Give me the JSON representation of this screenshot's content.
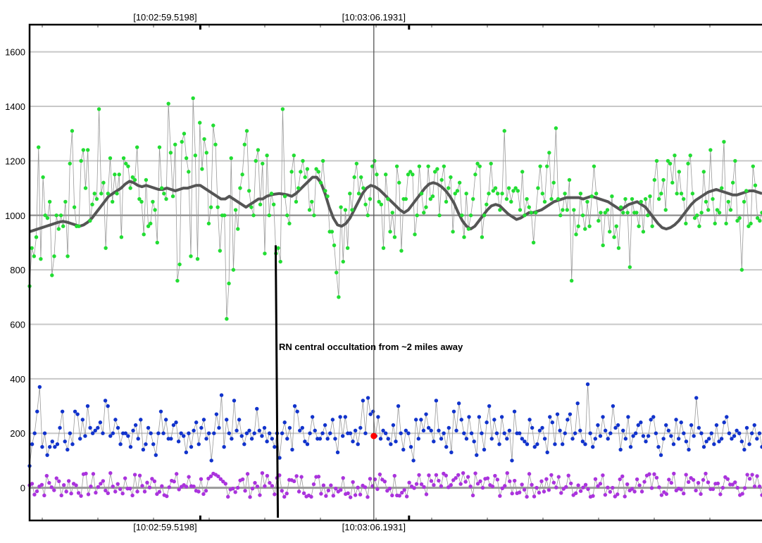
{
  "chart_data": {
    "type": "scatter",
    "ylim": [
      -120,
      1700
    ],
    "xlim": [
      0,
      1
    ],
    "grid": true,
    "y_ticks": [
      0,
      200,
      400,
      600,
      800,
      1000,
      1200,
      1400,
      1600
    ],
    "time_labels": [
      {
        "text": "[10:02:59.5198]",
        "x": 0.185
      },
      {
        "text": "[10:03:06.1931]",
        "x": 0.47
      }
    ],
    "cursor_x": 0.47,
    "annotation": "RN central occultation from ~2 miles away",
    "event_line": {
      "from": [
        0.336,
        890
      ],
      "to": [
        0.339,
        -110
      ]
    },
    "highlight_point": {
      "x": 0.47,
      "y": 190
    },
    "colors": {
      "target": "#22dd33",
      "smoothed": "#555555",
      "comparison": "#1133cc",
      "background": "#aa33dd",
      "highlight": "#ff0000",
      "connector": "#999999",
      "grid": "#c8c8c8"
    },
    "series": [
      {
        "color": "#22dd33",
        "values": [
          740,
          880,
          850,
          920,
          1250,
          840,
          1140,
          1000,
          990,
          1050,
          780,
          850,
          1000,
          950,
          1000,
          960,
          1050,
          850,
          1190,
          1310,
          1030,
          960,
          960,
          1200,
          1240,
          1100,
          1240,
          980,
          1040,
          1080,
          1060,
          1390,
          1080,
          1120,
          880,
          1080,
          1210,
          1050,
          1150,
          1080,
          1150,
          920,
          1210,
          1190,
          1180,
          1100,
          1140,
          1130,
          1250,
          1060,
          1050,
          930,
          1130,
          960,
          970,
          1050,
          1020,
          900,
          1250,
          1100,
          1080,
          1060,
          1410,
          1230,
          1070,
          1260,
          760,
          820,
          1270,
          1300,
          1210,
          1160,
          850,
          1430,
          1220,
          840,
          1340,
          1170,
          1280,
          1230,
          970,
          1030,
          1330,
          1260,
          1030,
          870,
          1000,
          1000,
          620,
          750,
          1210,
          800,
          1020,
          950,
          1100,
          1150,
          1260,
          1310,
          1090,
          1030,
          1000,
          1200,
          1240,
          1040,
          1190,
          860,
          1220,
          1000,
          1080,
          1040,
          860,
          880,
          830,
          1390,
          1070,
          1000,
          970,
          1160,
          1220,
          1050,
          1100,
          1160,
          1200,
          1140,
          1170,
          1020,
          1050,
          1000,
          1170,
          1160,
          1120,
          1200,
          1090,
          1070,
          940,
          940,
          890,
          790,
          700,
          1030,
          830,
          1020,
          880,
          1080,
          1020,
          1140,
          1190,
          1080,
          1140,
          1100,
          1040,
          1000,
          1060,
          1180,
          1200,
          1150,
          1050,
          1040,
          880,
          1150,
          1060,
          940,
          1010,
          920,
          1180,
          1120,
          870,
          1060,
          1060,
          1150,
          1160,
          1150,
          930,
          1000,
          1180,
          1080,
          1010,
          1030,
          1180,
          1060,
          1070,
          1160,
          1170,
          1000,
          1130,
          1180,
          1050,
          1100,
          1140,
          940,
          1080,
          1090,
          1120,
          1000,
          920,
          1080,
          950,
          1000,
          1060,
          1150,
          1190,
          1180,
          920,
          1000,
          1040,
          1080,
          1190,
          1090,
          1100,
          1080,
          1020,
          1080,
          1310,
          1060,
          1100,
          1050,
          1090,
          1100,
          1090,
          1020,
          1160,
          1000,
          1060,
          1030,
          1010,
          900,
          1010,
          1100,
          1180,
          1080,
          1050,
          1180,
          1230,
          1060,
          1120,
          1320,
          1060,
          1000,
          1020,
          1080,
          1020,
          1130,
          760,
          1020,
          930,
          960,
          1080,
          1000,
          950,
          1050,
          960,
          1070,
          1180,
          1080,
          980,
          1010,
          890,
          1010,
          1020,
          940,
          1070,
          920,
          960,
          880,
          1030,
          1010,
          1060,
          1010,
          810,
          1060,
          1010,
          1010,
          960,
          1050,
          940,
          1060,
          1000,
          1070,
          960,
          1130,
          1200,
          1060,
          1080,
          1130,
          1020,
          1200,
          1190,
          1120,
          1220,
          1080,
          1160,
          1080,
          1060,
          970,
          1190,
          1220,
          1080,
          990,
          1000,
          960,
          1010,
          1160,
          1050,
          1020,
          1240,
          1060,
          970,
          1020,
          1010,
          1100,
          1270,
          970,
          1050,
          1020,
          1120,
          1200,
          980,
          990,
          800,
          1050,
          1090,
          960,
          970,
          1180,
          1110,
          990,
          980,
          1010
        ]
      },
      {
        "color": "#555555",
        "values": [
          940,
          945,
          950,
          955,
          960,
          965,
          970,
          975,
          978,
          975,
          970,
          965,
          960,
          965,
          975,
          990,
          1010,
          1030,
          1050,
          1070,
          1080,
          1090,
          1100,
          1115,
          1125,
          1120,
          1110,
          1105,
          1110,
          1105,
          1100,
          1095,
          1095,
          1100,
          1095,
          1090,
          1095,
          1100,
          1100,
          1105,
          1110,
          1110,
          1100,
          1090,
          1080,
          1070,
          1060,
          1060,
          1070,
          1060,
          1050,
          1040,
          1030,
          1040,
          1050,
          1060,
          1060,
          1070,
          1075,
          1078,
          1080,
          1078,
          1075,
          1070,
          1080,
          1095,
          1110,
          1125,
          1140,
          1140,
          1120,
          1080,
          1030,
          990,
          965,
          960,
          970,
          990,
          1020,
          1050,
          1080,
          1100,
          1110,
          1105,
          1095,
          1080,
          1065,
          1050,
          1035,
          1020,
          1010,
          1020,
          1040,
          1060,
          1080,
          1100,
          1115,
          1120,
          1115,
          1105,
          1090,
          1070,
          1045,
          1010,
          980,
          960,
          950,
          960,
          980,
          1000,
          1020,
          1035,
          1040,
          1035,
          1020,
          1005,
          995,
          985,
          990,
          1000,
          1010,
          1010,
          1015,
          1020,
          1030,
          1040,
          1050,
          1055,
          1060,
          1065,
          1065,
          1065,
          1065,
          1060,
          1065,
          1070,
          1065,
          1060,
          1055,
          1050,
          1040,
          1030,
          1020,
          1030,
          1040,
          1045,
          1050,
          1040,
          1030,
          1010,
          990,
          970,
          955,
          950,
          955,
          965,
          980,
          1000,
          1020,
          1040,
          1055,
          1065,
          1075,
          1085,
          1090,
          1095,
          1090,
          1085,
          1080,
          1075,
          1075,
          1080,
          1085,
          1090,
          1090,
          1085,
          1080
        ]
      },
      {
        "color": "#1133cc",
        "values": [
          80,
          160,
          200,
          280,
          370,
          150,
          200,
          120,
          150,
          170,
          150,
          160,
          220,
          280,
          170,
          140,
          200,
          160,
          280,
          270,
          180,
          250,
          190,
          300,
          220,
          200,
          210,
          220,
          240,
          200,
          320,
          300,
          190,
          200,
          250,
          220,
          160,
          200,
          200,
          190,
          150,
          210,
          230,
          180,
          250,
          140,
          160,
          220,
          200,
          160,
          120,
          200,
          280,
          200,
          250,
          180,
          180,
          230,
          240,
          170,
          200,
          190,
          130,
          200,
          150,
          210,
          240,
          160,
          220,
          250,
          180,
          200,
          100,
          200,
          270,
          220,
          340,
          150,
          250,
          200,
          180,
          320,
          210,
          250,
          190,
          160,
          200,
          210,
          180,
          200,
          290,
          210,
          190,
          220,
          170,
          200,
          180,
          150,
          200,
          110,
          200,
          240,
          180,
          220,
          140,
          300,
          280,
          210,
          220,
          170,
          160,
          200,
          260,
          210,
          180,
          180,
          200,
          230,
          180,
          200,
          250,
          180,
          130,
          260,
          190,
          260,
          200,
          200,
          170,
          210,
          160,
          220,
          320,
          200,
          330,
          270,
          280,
          190,
          260,
          180,
          210,
          200,
          180,
          160,
          230,
          170,
          300,
          200,
          140,
          210,
          200,
          150,
          100,
          250,
          180,
          250,
          210,
          270,
          220,
          210,
          170,
          320,
          210,
          180,
          200,
          150,
          220,
          130,
          280,
          210,
          310,
          250,
          200,
          180,
          260,
          200,
          170,
          120,
          260,
          200,
          140,
          240,
          300,
          180,
          250,
          200,
          160,
          260,
          200,
          180,
          210,
          100,
          280,
          200,
          200,
          180,
          170,
          160,
          250,
          220,
          150,
          160,
          210,
          220,
          180,
          130,
          260,
          240,
          160,
          270,
          210,
          160,
          200,
          250,
          270,
          180,
          200,
          310,
          210,
          170,
          160,
          380,
          200,
          150,
          180,
          230,
          190,
          260,
          210,
          180,
          200,
          300,
          220,
          230,
          140,
          210,
          180,
          260,
          150,
          190,
          200,
          230,
          240,
          190,
          170,
          190,
          250,
          260,
          200,
          150,
          120,
          180,
          230,
          210,
          190,
          160,
          250,
          180,
          240,
          200,
          170,
          140,
          230,
          190,
          330,
          220,
          200,
          150,
          170,
          180,
          200,
          160,
          230,
          170,
          180,
          240,
          260,
          200,
          180,
          190,
          210,
          200,
          170,
          140,
          220,
          160,
          200,
          230,
          180,
          200,
          150
        ]
      }
    ]
  }
}
